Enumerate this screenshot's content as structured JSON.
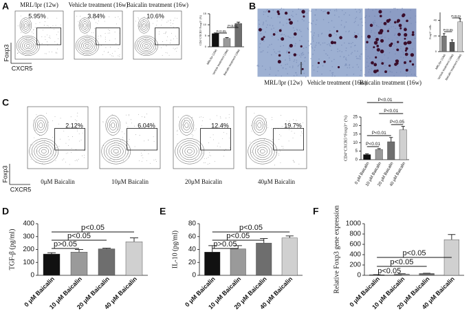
{
  "panels": {
    "A": {
      "letter": "A",
      "plots": [
        {
          "title": "MRL/lpr (12w)",
          "percent": "5.95%"
        },
        {
          "title": "Vehicle treatment (16w)",
          "percent": "3.84%"
        },
        {
          "title": "Baicalin treatment (16w)",
          "percent": "10.6%"
        }
      ],
      "y_axis": "Foxp3",
      "x_axis": "CXCR5"
    },
    "B": {
      "letter": "B",
      "images": [
        "MRL/lpr (12w)",
        "Vehicle treatment (16w)",
        "Baicalin treatment (16w)"
      ]
    },
    "C": {
      "letter": "C",
      "plots": [
        {
          "caption": "0μM Baicalin",
          "percent": "2.12%"
        },
        {
          "caption": "10μM Baicalin",
          "percent": "6.04%"
        },
        {
          "caption": "20μM Baicalin",
          "percent": "12.4%"
        },
        {
          "caption": "40μM Baicalin",
          "percent": "19.7%"
        }
      ],
      "y_axis": "Foxp3",
      "x_axis": "CXCR5"
    },
    "D": {
      "letter": "D"
    },
    "E": {
      "letter": "E"
    },
    "F": {
      "letter": "F"
    }
  },
  "chart_data": [
    {
      "type": "bar",
      "y_label": "CD4⁺CXCR5⁺Foxp3⁺ (%)",
      "categories": [
        "MRL/lpr (12w)",
        "Vehicle treatment (16w)",
        "Baicalin treatment (16w)"
      ],
      "values": [
        6,
        3.8,
        10.6
      ],
      "errors": [
        0.3,
        0.4,
        0.6
      ],
      "colors": [
        "#111111",
        "#9a9a9a",
        "#6e6e6e"
      ],
      "ylim": [
        0,
        15
      ],
      "yticks": [
        0,
        5,
        10,
        15
      ],
      "annotations": [
        "P<0.05",
        "P<0.01"
      ]
    },
    {
      "type": "bar",
      "y_label": "Foxp3⁺ cells",
      "categories": [
        "MRL/lpr (12w)",
        "Vehicle treatment (16w)",
        "Baicalin treatment (16w)"
      ],
      "values": [
        20,
        12,
        38
      ],
      "errors": [
        3,
        3,
        4
      ],
      "colors": [
        "#7a7a7a",
        "#555555",
        "#d0d0d0"
      ],
      "ylim": [
        0,
        50
      ],
      "yticks": [
        0,
        20,
        40
      ],
      "annotations": [
        "P<0.05",
        "P<0.01"
      ]
    },
    {
      "type": "bar",
      "y_label": "CD4⁺CXCR5⁺Foxp3⁺ (%)",
      "categories": [
        "0 μM Baicalin",
        "10 μM Baicalin",
        "20 μM Baicalin",
        "40 μM Baicalin"
      ],
      "values": [
        3,
        6,
        10.5,
        17.5
      ],
      "errors": [
        0.4,
        0.5,
        2.5,
        2
      ],
      "colors": [
        "#111111",
        "#9a9a9a",
        "#6e6e6e",
        "#d0d0d0"
      ],
      "ylim": [
        0,
        25
      ],
      "yticks": [
        0,
        5,
        10,
        15,
        20,
        25
      ],
      "annotations": [
        "P<0.01",
        "P<0.01",
        "P<0.05",
        "P<0.01",
        "P<0.01"
      ]
    },
    {
      "type": "bar",
      "y_label": "TGF-β (pg/ml)",
      "categories": [
        "0 μM Baicalin",
        "10 μM Baicalin",
        "20 μM Baicalin",
        "40 μM Baicalin"
      ],
      "values": [
        165,
        180,
        205,
        260
      ],
      "errors": [
        10,
        20,
        5,
        30
      ],
      "colors": [
        "#111111",
        "#9a9a9a",
        "#6e6e6e",
        "#d0d0d0"
      ],
      "ylim": [
        0,
        400
      ],
      "yticks": [
        0,
        100,
        200,
        300,
        400
      ],
      "annotations": [
        "p>0.05",
        "p<0.05",
        "p<0.05"
      ]
    },
    {
      "type": "bar",
      "y_label": "IL-10 (pg/ml)",
      "categories": [
        "0 μM Baicalin",
        "10 μM Baicalin",
        "20 μM Baicalin",
        "40 μM Baicalin"
      ],
      "values": [
        36,
        41,
        50,
        58
      ],
      "errors": [
        10,
        5,
        7,
        3
      ],
      "colors": [
        "#111111",
        "#9a9a9a",
        "#6e6e6e",
        "#d0d0d0"
      ],
      "ylim": [
        0,
        80
      ],
      "yticks": [
        0,
        20,
        40,
        60,
        80
      ],
      "annotations": [
        "p>0.05",
        "p<0.05",
        "p<0.05"
      ]
    },
    {
      "type": "bar",
      "y_label": "Relative Foxp3 gene expression",
      "categories": [
        "0 μM Baicalin",
        "10 μM Baicalin",
        "20 μM Baicalin",
        "40 μM Baicalin"
      ],
      "values": [
        10,
        25,
        35,
        690
      ],
      "errors": [
        3,
        5,
        5,
        100
      ],
      "colors": [
        "#111111",
        "#9a9a9a",
        "#6e6e6e",
        "#d0d0d0"
      ],
      "ylim": [
        0,
        1000
      ],
      "yticks": [
        0,
        200,
        400,
        600,
        800,
        1000
      ],
      "annotations": [
        "p<0.05",
        "p<0.05",
        "p<0.05"
      ]
    }
  ]
}
